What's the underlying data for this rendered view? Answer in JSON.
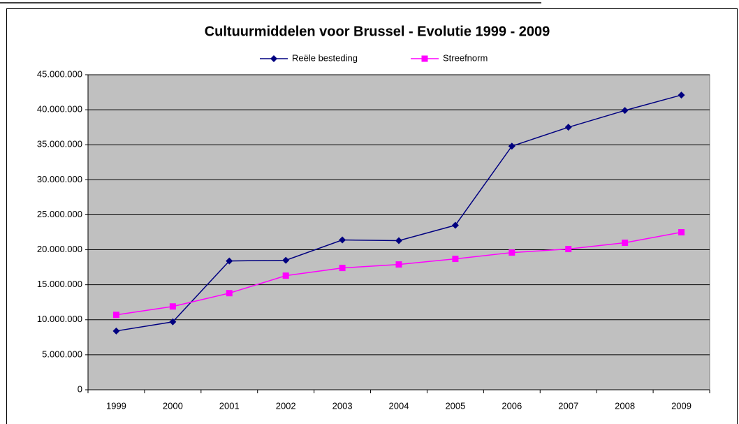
{
  "chart_data": {
    "type": "line",
    "title": "Cultuurmiddelen voor Brussel - Evolutie 1999 - 2009",
    "categories": [
      "1999",
      "2000",
      "2001",
      "2002",
      "2003",
      "2004",
      "2005",
      "2006",
      "2007",
      "2008",
      "2009"
    ],
    "series": [
      {
        "name": "Reële besteding",
        "color": "#000080",
        "marker": "diamond",
        "values": [
          8400000,
          9700000,
          18400000,
          18500000,
          21400000,
          21300000,
          23500000,
          34800000,
          37500000,
          39900000,
          42100000
        ]
      },
      {
        "name": "Streefnorm",
        "color": "#ff00ff",
        "marker": "square",
        "values": [
          10700000,
          11900000,
          13800000,
          16300000,
          17400000,
          17900000,
          18700000,
          19600000,
          20100000,
          21000000,
          22500000
        ]
      }
    ],
    "ylim": [
      0,
      45000000
    ],
    "yticks": [
      0,
      {
        "value": 5000000,
        "label": "5.000.000"
      },
      {
        "value": 10000000,
        "label": "10.000.000"
      },
      {
        "value": 15000000,
        "label": "15.000.000"
      },
      {
        "value": 20000000,
        "label": "20.000.000"
      },
      {
        "value": 25000000,
        "label": "25.000.000"
      },
      {
        "value": 30000000,
        "label": "30.000.000"
      },
      {
        "value": 35000000,
        "label": "35.000.000"
      },
      {
        "value": 40000000,
        "label": "40.000.000"
      },
      {
        "value": 45000000,
        "label": "45.000.000"
      }
    ],
    "grid": true,
    "legend": "top",
    "plot_background": "#c0c0c0"
  }
}
